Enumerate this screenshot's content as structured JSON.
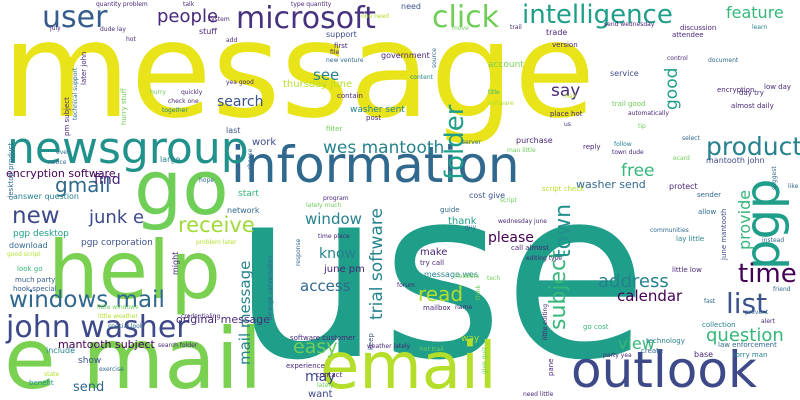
{
  "words": [
    {
      "text": "use",
      "color": "#1f9e89"
    },
    {
      "text": "message",
      "color": "#e8e419"
    },
    {
      "text": "e mail",
      "color": "#7ad151"
    },
    {
      "text": "email",
      "color": "#b5de2b"
    },
    {
      "text": "go",
      "color": "#6ece58"
    },
    {
      "text": "help",
      "color": "#7ad151"
    },
    {
      "text": "information",
      "color": "#31688e"
    },
    {
      "text": "newsgroup",
      "color": "#21918c"
    },
    {
      "text": "outlook",
      "color": "#3e4989"
    },
    {
      "text": "microsoft",
      "color": "#46327e"
    },
    {
      "text": "intelligence",
      "color": "#1f9e89"
    },
    {
      "text": "john washer",
      "color": "#3e4989"
    },
    {
      "text": "click",
      "color": "#6ece58"
    },
    {
      "text": "user",
      "color": "#365c8d"
    },
    {
      "text": "pgp",
      "color": "#1f9e89"
    },
    {
      "text": "product",
      "color": "#26828e"
    },
    {
      "text": "list",
      "color": "#3b528b"
    },
    {
      "text": "time",
      "color": "#440154"
    },
    {
      "text": "folder",
      "color": "#1f9e89"
    },
    {
      "text": "windows mail",
      "color": "#31688e"
    },
    {
      "text": "people",
      "color": "#482878"
    },
    {
      "text": "wes mantooth",
      "color": "#26828e"
    },
    {
      "text": "feature",
      "color": "#35b779"
    },
    {
      "text": "question",
      "color": "#35b779"
    },
    {
      "text": "receive",
      "color": "#9fda3a"
    },
    {
      "text": "new",
      "color": "#3e4989"
    },
    {
      "text": "gmail",
      "color": "#31688e"
    },
    {
      "text": "subject",
      "color": "#35b779"
    },
    {
      "text": "town",
      "color": "#21918c"
    },
    {
      "text": "address",
      "color": "#26828e"
    },
    {
      "text": "calendar",
      "color": "#440154"
    },
    {
      "text": "easy",
      "color": "#6ece58"
    },
    {
      "text": "read",
      "color": "#b5de2b"
    },
    {
      "text": "view",
      "color": "#35b779"
    },
    {
      "text": "junk e",
      "color": "#3e4989"
    },
    {
      "text": "trial software",
      "color": "#26828e"
    },
    {
      "text": "mail message",
      "color": "#26828e"
    },
    {
      "text": "good",
      "color": "#1f9e89"
    },
    {
      "text": "say",
      "color": "#482878"
    },
    {
      "text": "see",
      "color": "#26828e"
    },
    {
      "text": "search",
      "color": "#3b528b"
    },
    {
      "text": "window",
      "color": "#26828e"
    },
    {
      "text": "know",
      "color": "#26828e"
    },
    {
      "text": "access",
      "color": "#31688e"
    },
    {
      "text": "free",
      "color": "#35b779"
    },
    {
      "text": "provide",
      "color": "#35b779"
    },
    {
      "text": "find",
      "color": "#482878"
    },
    {
      "text": "please",
      "color": "#440154"
    },
    {
      "text": "may",
      "color": "#3e4989"
    },
    {
      "text": "send",
      "color": "#31688e"
    },
    {
      "text": "encryption software",
      "color": "#440154"
    },
    {
      "text": "mantooth subject",
      "color": "#440154"
    },
    {
      "text": "original message",
      "color": "#472d7b"
    },
    {
      "text": "washer send",
      "color": "#31688e"
    },
    {
      "text": "pgp desktop",
      "color": "#1f9e89"
    },
    {
      "text": "pgp corporation",
      "color": "#3b528b"
    },
    {
      "text": "june pm",
      "color": "#482878"
    },
    {
      "text": "thursday june",
      "color": "#b5de2b"
    },
    {
      "text": "washer sent",
      "color": "#26828e"
    },
    {
      "text": "message wes",
      "color": "#26828e"
    },
    {
      "text": "work",
      "color": "#3e4989"
    },
    {
      "text": "want",
      "color": "#3e4989"
    },
    {
      "text": "stuff",
      "color": "#482878"
    },
    {
      "text": "need",
      "color": "#3b528b"
    },
    {
      "text": "support",
      "color": "#3e4989"
    },
    {
      "text": "account",
      "color": "#7ad151"
    },
    {
      "text": "trade",
      "color": "#482878"
    },
    {
      "text": "service",
      "color": "#3e4989"
    },
    {
      "text": "make",
      "color": "#482878"
    },
    {
      "text": "thank",
      "color": "#1f9e89"
    },
    {
      "text": "show",
      "color": "#3b528b"
    },
    {
      "text": "include",
      "color": "#26828e"
    },
    {
      "text": "download",
      "color": "#31688e"
    },
    {
      "text": "answer question",
      "color": "#26828e"
    },
    {
      "text": "desktop product",
      "color": "#31688e"
    },
    {
      "text": "much party",
      "color": "#365c8d"
    },
    {
      "text": "hook special",
      "color": "#365c8d"
    },
    {
      "text": "look go",
      "color": "#35b779"
    },
    {
      "text": "good script",
      "color": "#b5de2b"
    },
    {
      "text": "benefit",
      "color": "#21918c"
    },
    {
      "text": "state",
      "color": "#b5de2b"
    },
    {
      "text": "exercise",
      "color": "#31688e"
    },
    {
      "text": "start",
      "color": "#35b779"
    },
    {
      "text": "network",
      "color": "#31688e"
    },
    {
      "text": "might",
      "color": "#482878"
    },
    {
      "text": "large",
      "color": "#26828e"
    },
    {
      "text": "last",
      "color": "#3b528b"
    },
    {
      "text": "filter",
      "color": "#6ece58"
    },
    {
      "text": "contain",
      "color": "#482878"
    },
    {
      "text": "post",
      "color": "#482878"
    },
    {
      "text": "first",
      "color": "#482878"
    },
    {
      "text": "government",
      "color": "#482878"
    },
    {
      "text": "content",
      "color": "#26828e"
    },
    {
      "text": "cost give",
      "color": "#3b528b"
    },
    {
      "text": "purchase",
      "color": "#482878"
    },
    {
      "text": "reply",
      "color": "#482878"
    },
    {
      "text": "keep",
      "color": "#3b528b"
    },
    {
      "text": "experience",
      "color": "#482878"
    },
    {
      "text": "contact",
      "color": "#482878"
    },
    {
      "text": "program",
      "color": "#482878"
    },
    {
      "text": "guide",
      "color": "#31688e"
    },
    {
      "text": "time place",
      "color": "#482878"
    },
    {
      "text": "call almost",
      "color": "#482878"
    },
    {
      "text": "editing type",
      "color": "#482878"
    },
    {
      "text": "try call",
      "color": "#482878"
    },
    {
      "text": "mailbox",
      "color": "#482878"
    },
    {
      "text": "name",
      "color": "#482878"
    },
    {
      "text": "forum",
      "color": "#482878"
    },
    {
      "text": "way",
      "color": "#b5de2b"
    },
    {
      "text": "weather lately",
      "color": "#482878"
    },
    {
      "text": "software customer",
      "color": "#482878"
    },
    {
      "text": "collection",
      "color": "#26828e"
    },
    {
      "text": "technology",
      "color": "#26828e"
    },
    {
      "text": "base",
      "color": "#482878"
    },
    {
      "text": "create",
      "color": "#31688e"
    },
    {
      "text": "sorry man",
      "color": "#26828e"
    },
    {
      "text": "law enforcement",
      "color": "#31688e"
    },
    {
      "text": "alert",
      "color": "#482878"
    },
    {
      "text": "little low",
      "color": "#482878"
    },
    {
      "text": "lay little",
      "color": "#26828e"
    },
    {
      "text": "june mantooth",
      "color": "#3e4989"
    },
    {
      "text": "communities",
      "color": "#31688e"
    },
    {
      "text": "sender",
      "color": "#31688e"
    },
    {
      "text": "allow",
      "color": "#31688e"
    },
    {
      "text": "protect",
      "color": "#482878"
    },
    {
      "text": "mantooth john",
      "color": "#3e4989"
    },
    {
      "text": "town dude",
      "color": "#482878"
    },
    {
      "text": "follow",
      "color": "#26828e"
    },
    {
      "text": "almost daily",
      "color": "#482878"
    },
    {
      "text": "day try",
      "color": "#482878"
    },
    {
      "text": "low day",
      "color": "#482878"
    },
    {
      "text": "encryption",
      "color": "#482878"
    },
    {
      "text": "control",
      "color": "#482878"
    },
    {
      "text": "automatically",
      "color": "#482878"
    },
    {
      "text": "trail good",
      "color": "#6ece58"
    },
    {
      "text": "place hot",
      "color": "#482878"
    },
    {
      "text": "discussion",
      "color": "#482878"
    },
    {
      "text": "attendee",
      "color": "#482878"
    },
    {
      "text": "learn",
      "color": "#26828e"
    },
    {
      "text": "version",
      "color": "#482878"
    },
    {
      "text": "send wednesday",
      "color": "#482878"
    },
    {
      "text": "move",
      "color": "#6ece58"
    },
    {
      "text": "trail",
      "color": "#482878"
    },
    {
      "text": "quantity problem",
      "color": "#482878"
    },
    {
      "text": "talk",
      "color": "#482878"
    },
    {
      "text": "type quantity",
      "color": "#482878"
    },
    {
      "text": "system",
      "color": "#482878"
    },
    {
      "text": "dude lay",
      "color": "#482878"
    },
    {
      "text": "add",
      "color": "#482878"
    },
    {
      "text": "yea good",
      "color": "#482878"
    },
    {
      "text": "check one",
      "color": "#482878"
    },
    {
      "text": "quickly",
      "color": "#482878"
    },
    {
      "text": "together",
      "color": "#26828e"
    },
    {
      "text": "hurry stuff",
      "color": "#6ece58"
    },
    {
      "text": "pm subject",
      "color": "#482878"
    },
    {
      "text": "technical support",
      "color": "#31688e"
    },
    {
      "text": "later john",
      "color": "#482878"
    },
    {
      "text": "july",
      "color": "#482878"
    },
    {
      "text": "hot",
      "color": "#482878"
    },
    {
      "text": "new venture",
      "color": "#31688e"
    },
    {
      "text": "file",
      "color": "#482878"
    },
    {
      "text": "script check",
      "color": "#b5de2b"
    },
    {
      "text": "little editing",
      "color": "#482878"
    },
    {
      "text": "need little",
      "color": "#482878"
    },
    {
      "text": "pane",
      "color": "#482878"
    },
    {
      "text": "party yea",
      "color": "#482878"
    },
    {
      "text": "wednesday june",
      "color": "#482878"
    },
    {
      "text": "credentialing",
      "color": "#482878"
    },
    {
      "text": "search folder",
      "color": "#482878"
    },
    {
      "text": "little weather",
      "color": "#b5de2b"
    },
    {
      "text": "response",
      "color": "#31688e"
    },
    {
      "text": "arrange conversation",
      "color": "#31688e"
    },
    {
      "text": "choose",
      "color": "#31688e"
    },
    {
      "text": "give quiz",
      "color": "#6ece58"
    },
    {
      "text": "server",
      "color": "#31688e"
    },
    {
      "text": "man little",
      "color": "#6ece58"
    },
    {
      "text": "go cost",
      "color": "#35b779"
    },
    {
      "text": "fast",
      "color": "#31688e"
    },
    {
      "text": "friend",
      "color": "#31688e"
    },
    {
      "text": "like",
      "color": "#31688e"
    },
    {
      "text": "suggest",
      "color": "#31688e"
    },
    {
      "text": "hope",
      "color": "#31688e"
    },
    {
      "text": "one need",
      "color": "#b5de2b"
    },
    {
      "text": "us",
      "color": "#482878"
    },
    {
      "text": "title",
      "color": "#35b779"
    },
    {
      "text": "software",
      "color": "#b5de2b"
    },
    {
      "text": "mail",
      "color": "#b5de2b"
    },
    {
      "text": "source",
      "color": "#31688e"
    },
    {
      "text": "lately much",
      "color": "#6ece58"
    },
    {
      "text": "guy",
      "color": "#31688e"
    },
    {
      "text": "think",
      "color": "#6ece58"
    },
    {
      "text": "tech",
      "color": "#6ece58"
    },
    {
      "text": "even",
      "color": "#31688e"
    },
    {
      "text": "notice",
      "color": "#31688e"
    },
    {
      "text": "instead",
      "color": "#31688e"
    },
    {
      "text": "ecard",
      "color": "#6ece58"
    },
    {
      "text": "select",
      "color": "#31688e"
    },
    {
      "text": "prevent",
      "color": "#31688e"
    },
    {
      "text": "problem later",
      "color": "#b5de2b"
    },
    {
      "text": "special look",
      "color": "#31688e"
    },
    {
      "text": "hurry",
      "color": "#6ece58"
    },
    {
      "text": "hot trail",
      "color": "#6ece58"
    },
    {
      "text": "headers",
      "color": "#6ece58"
    },
    {
      "text": "document",
      "color": "#31688e"
    },
    {
      "text": "little windows",
      "color": "#6ece58"
    },
    {
      "text": "script",
      "color": "#6ece58"
    },
    {
      "text": "lately",
      "color": "#6ece58"
    },
    {
      "text": "tip",
      "color": "#6ece58"
    }
  ]
}
